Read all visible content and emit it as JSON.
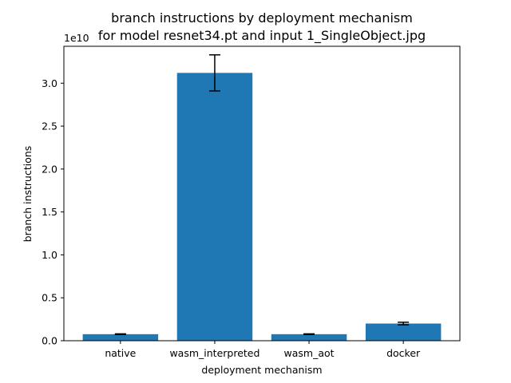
{
  "chart_data": {
    "type": "bar",
    "title": [
      "branch instructions by deployment mechanism",
      "for model resnet34.pt and input 1_SingleObject.jpg"
    ],
    "xlabel": "deployment mechanism",
    "ylabel": "branch instructions",
    "y_offset_label": "1e10",
    "categories": [
      "native",
      "wasm_interpreted",
      "wasm_aot",
      "docker"
    ],
    "values": [
      760000000,
      31200000000,
      760000000,
      2000000000
    ],
    "errors": [
      40000000,
      2100000000,
      40000000,
      150000000
    ],
    "ylim": [
      0,
      34300000000
    ],
    "yticks": [
      0,
      5000000000,
      10000000000,
      15000000000,
      20000000000,
      25000000000,
      30000000000
    ],
    "ytick_labels": [
      "0.0",
      "0.5",
      "1.0",
      "1.5",
      "2.0",
      "2.5",
      "3.0"
    ],
    "bar_color": "#1f77b4",
    "grid": false,
    "legend": false
  }
}
